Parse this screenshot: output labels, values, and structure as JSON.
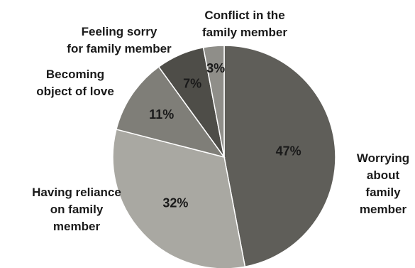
{
  "chart_data": {
    "type": "pie",
    "title": "",
    "categories": [
      "Worrying about family member",
      "Having reliance on family member",
      "Becoming object of love",
      "Feeling sorry for family member",
      "Conflict in the family member"
    ],
    "values": [
      47,
      32,
      11,
      7,
      3
    ],
    "value_labels": [
      "47%",
      "32%",
      "11%",
      "7%",
      "3%"
    ],
    "category_label_lines": [
      [
        "Worrying",
        "about",
        "family",
        "member"
      ],
      [
        "Having reliance",
        "on family",
        "member"
      ],
      [
        "Becoming",
        "object of love"
      ],
      [
        "Feeling sorry",
        "for family member"
      ],
      [
        "Conflict in the",
        "family member"
      ]
    ],
    "colors": [
      "#5f5e59",
      "#a9a8a2",
      "#7f7e78",
      "#4e4d48",
      "#8f8e89"
    ],
    "legend": "none"
  }
}
